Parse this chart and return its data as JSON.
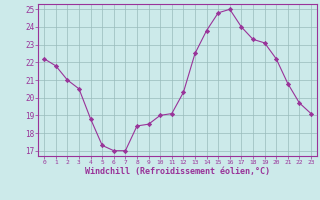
{
  "x": [
    0,
    1,
    2,
    3,
    4,
    5,
    6,
    7,
    8,
    9,
    10,
    11,
    12,
    13,
    14,
    15,
    16,
    17,
    18,
    19,
    20,
    21,
    22,
    23
  ],
  "y": [
    22.2,
    21.8,
    21.0,
    20.5,
    18.8,
    17.3,
    17.0,
    17.0,
    18.4,
    18.5,
    19.0,
    19.1,
    20.3,
    22.5,
    23.8,
    24.8,
    25.0,
    24.0,
    23.3,
    23.1,
    22.2,
    20.8,
    19.7,
    19.1
  ],
  "line_color": "#993399",
  "marker": "D",
  "markersize": 2.2,
  "bg_color": "#cceaea",
  "grid_color": "#99bbbb",
  "xlabel": "Windchill (Refroidissement éolien,°C)",
  "xlabel_color": "#993399",
  "tick_color": "#993399",
  "spine_color": "#993399",
  "ylim_min": 17,
  "ylim_max": 25,
  "xlim_min": 0,
  "xlim_max": 23,
  "yticks": [
    17,
    18,
    19,
    20,
    21,
    22,
    23,
    24,
    25
  ],
  "xticks": [
    0,
    1,
    2,
    3,
    4,
    5,
    6,
    7,
    8,
    9,
    10,
    11,
    12,
    13,
    14,
    15,
    16,
    17,
    18,
    19,
    20,
    21,
    22,
    23
  ]
}
